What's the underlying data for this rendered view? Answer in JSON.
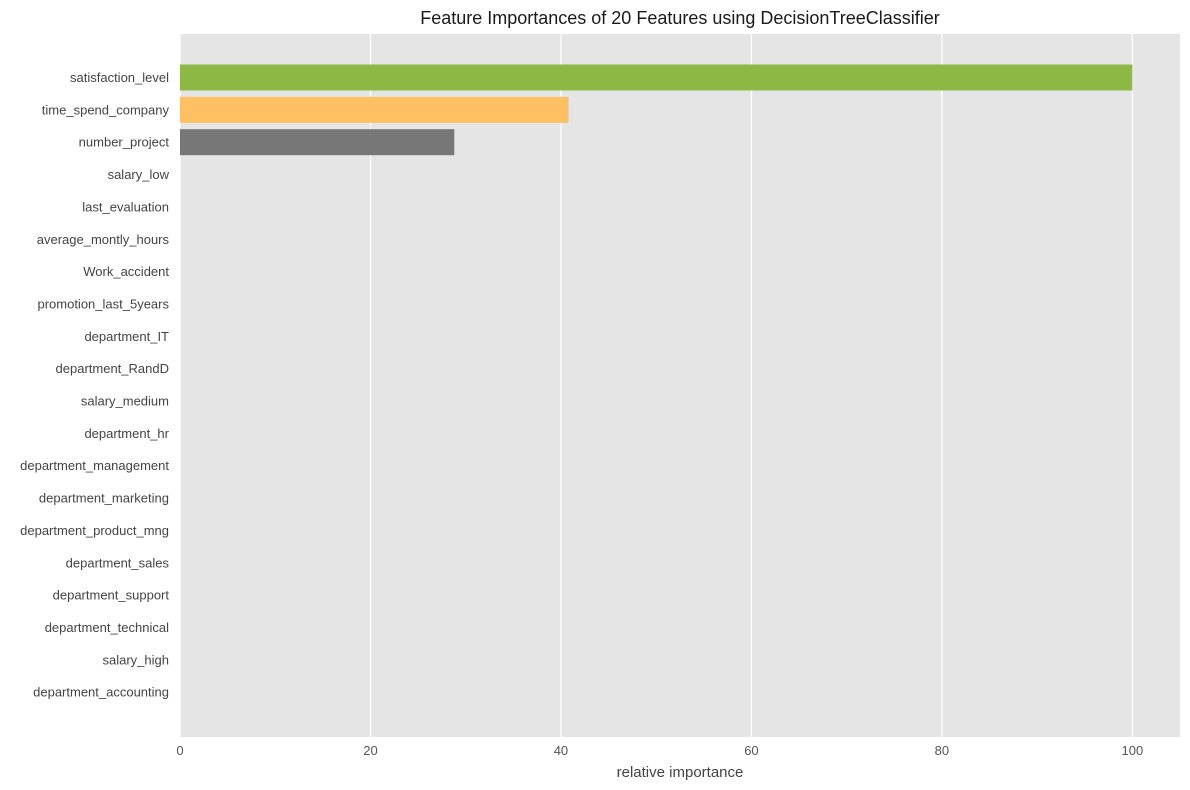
{
  "chart_data": {
    "type": "bar",
    "orientation": "horizontal",
    "title": "Feature Importances of 20 Features using DecisionTreeClassifier",
    "xlabel": "relative importance",
    "ylabel": "",
    "xlim": [
      0,
      105
    ],
    "xticks": [
      "0",
      "20",
      "40",
      "60",
      "80",
      "100"
    ],
    "grid": true,
    "categories": [
      "satisfaction_level",
      "time_spend_company",
      "number_project",
      "salary_low",
      "last_evaluation",
      "average_montly_hours",
      "Work_accident",
      "promotion_last_5years",
      "department_IT",
      "department_RandD",
      "salary_medium",
      "department_hr",
      "department_management",
      "department_marketing",
      "department_product_mng",
      "department_sales",
      "department_support",
      "department_technical",
      "salary_high",
      "department_accounting"
    ],
    "values": [
      100,
      40.8,
      28.8,
      0,
      0,
      0,
      0,
      0,
      0,
      0,
      0,
      0,
      0,
      0,
      0,
      0,
      0,
      0,
      0,
      0
    ],
    "bar_colors": [
      "#8db843",
      "#fdc062",
      "#777777"
    ],
    "background_color": "#e5e5e5",
    "grid_color": "#ffffff"
  }
}
